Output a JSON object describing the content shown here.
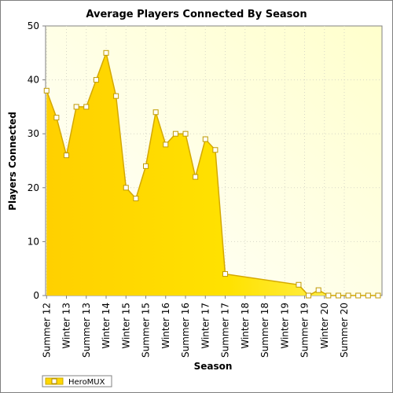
{
  "chart_data": {
    "type": "area",
    "title": "Average Players Connected By Season",
    "xlabel": "Season",
    "ylabel": "Players Connected",
    "ylim": [
      0,
      50
    ],
    "yticks": [
      0,
      10,
      20,
      30,
      40,
      50
    ],
    "grid": true,
    "legend_position": "bottom-left",
    "x_tick_labels": [
      "Summer 12",
      "Winter 13",
      "Summer 13",
      "Winter 14",
      "Winter 15",
      "Summer 15",
      "Winter 16",
      "Summer 16",
      "Winter 17",
      "Summer 17",
      "Winter 18",
      "Summer 18",
      "Winter 19",
      "Summer 19",
      "Winter 20",
      "Summer 20"
    ],
    "x_tick_positions": [
      0,
      2,
      4,
      6,
      8,
      10,
      12,
      14,
      16,
      18,
      20,
      22,
      24,
      26,
      28,
      30
    ],
    "x_range": [
      -0.1,
      33.8
    ],
    "series": [
      {
        "name": "HeroMUX",
        "color": "#ffd700",
        "points": [
          [
            0,
            38
          ],
          [
            1,
            33
          ],
          [
            2,
            26
          ],
          [
            3,
            35
          ],
          [
            4,
            35
          ],
          [
            5,
            40
          ],
          [
            6,
            45
          ],
          [
            7,
            37
          ],
          [
            8,
            20
          ],
          [
            9,
            18
          ],
          [
            10,
            24
          ],
          [
            11,
            34
          ],
          [
            12,
            28
          ],
          [
            13,
            30
          ],
          [
            14,
            30
          ],
          [
            15,
            22
          ],
          [
            16,
            29
          ],
          [
            17,
            27
          ],
          [
            18,
            4
          ],
          [
            25.4,
            2
          ],
          [
            26.4,
            0
          ],
          [
            27.4,
            1
          ],
          [
            28.4,
            0
          ],
          [
            29.4,
            0
          ],
          [
            30.4,
            0
          ],
          [
            31.4,
            0
          ],
          [
            32.4,
            0
          ],
          [
            33.4,
            0
          ]
        ]
      }
    ]
  }
}
